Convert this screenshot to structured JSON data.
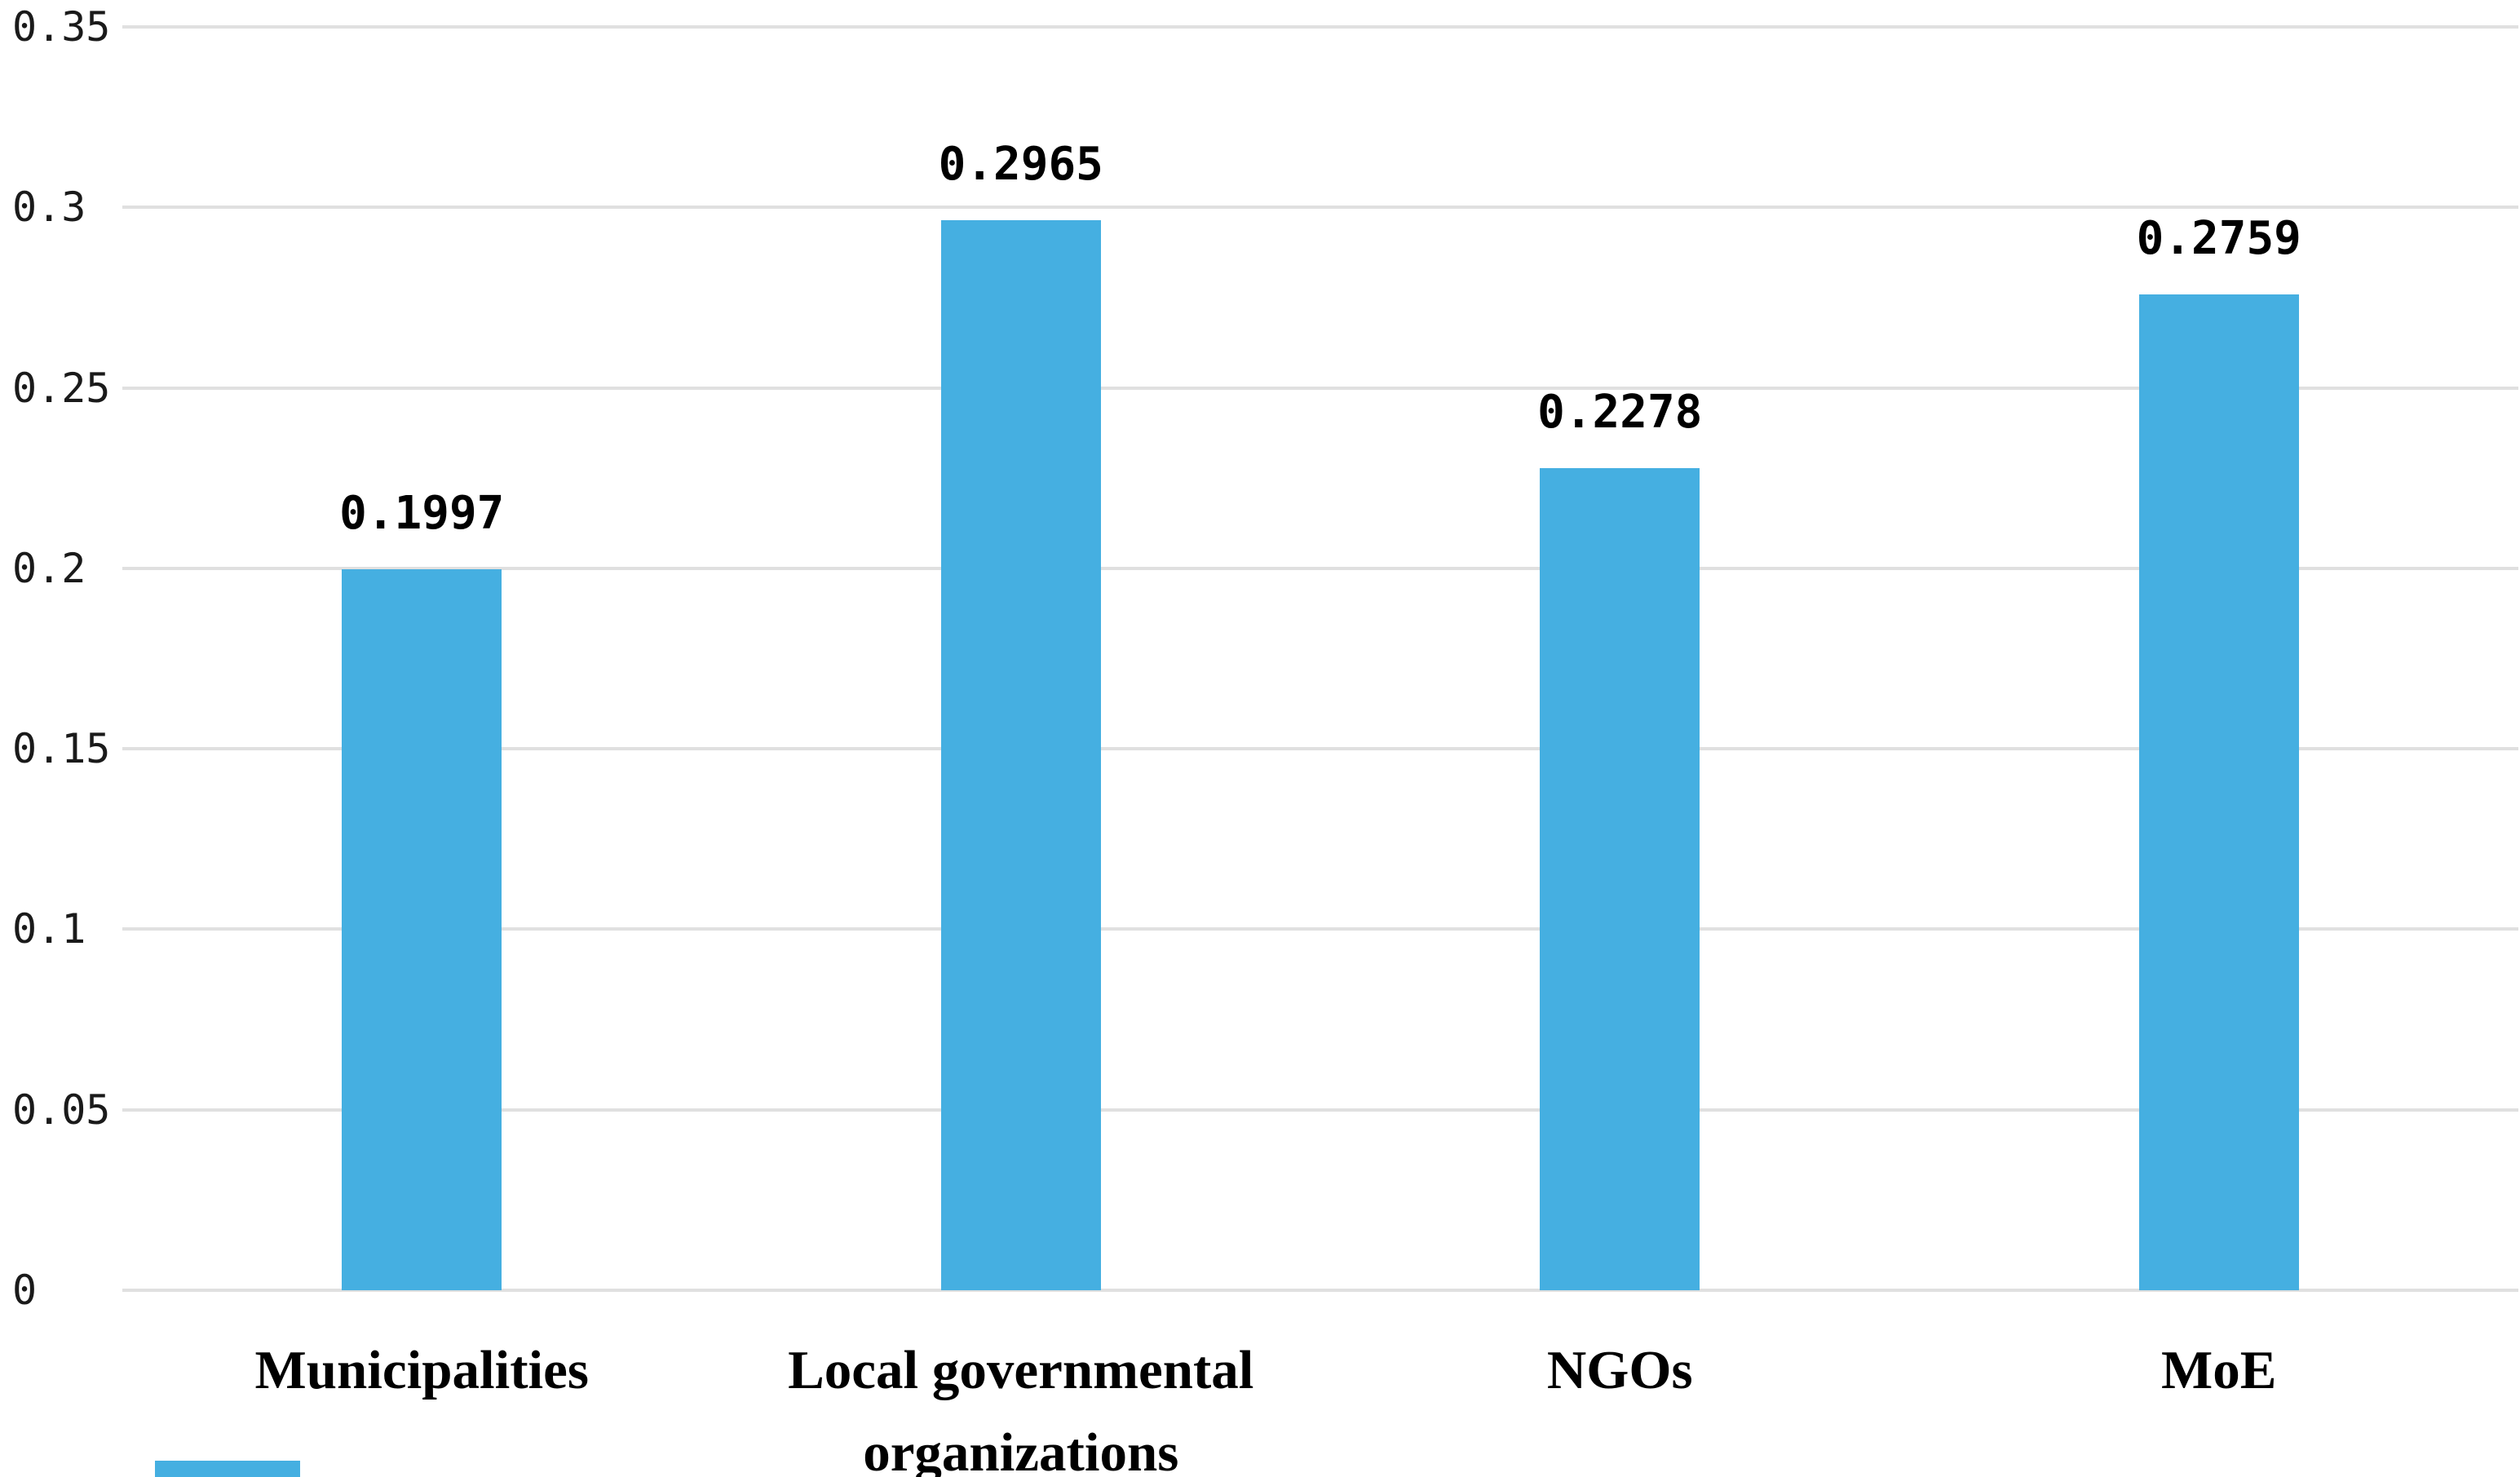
{
  "chart_data": {
    "type": "bar",
    "title": "",
    "xlabel": "",
    "ylabel": "",
    "categories": [
      "Municipalities",
      "Local governmental organizations",
      "NGOs",
      "MoE"
    ],
    "values": [
      0.1997,
      0.2965,
      0.2278,
      0.2759
    ],
    "value_labels": [
      "0.1997",
      "0.2965",
      "0.2278",
      "0.2759"
    ],
    "ylim": [
      0,
      0.35
    ],
    "y_ticks": [
      {
        "value": 0.35,
        "label": "0.35"
      },
      {
        "value": 0.3,
        "label": "0.3"
      },
      {
        "value": 0.25,
        "label": "0.25"
      },
      {
        "value": 0.2,
        "label": "0.2"
      },
      {
        "value": 0.15,
        "label": "0.15"
      },
      {
        "value": 0.1,
        "label": "0.1"
      },
      {
        "value": 0.05,
        "label": "0.05"
      },
      {
        "value": 0,
        "label": "0"
      }
    ],
    "grid": "horizontal",
    "legend": "none",
    "colors": {
      "bar": "#45afe1",
      "gridline": "#e0e0e0",
      "tick_label": "#1a1a1a",
      "value_label": "#000000",
      "category_label": "#000000",
      "background": "#ffffff"
    }
  },
  "decorations": {
    "bottom_left_fragment": {
      "description": "partially visible blue element at bottom-left edge",
      "color": "#45afe1"
    }
  }
}
